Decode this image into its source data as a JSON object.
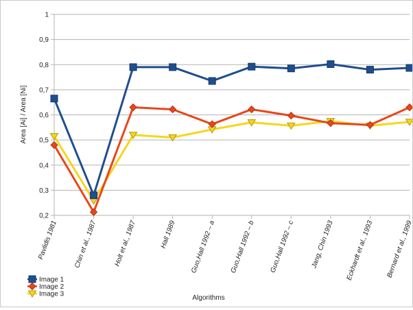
{
  "chart_data": {
    "type": "line",
    "title": "",
    "xlabel": "Algorithms",
    "ylabel": "Area [Ai] / Area [Ni]",
    "ylim": [
      0.2,
      1
    ],
    "ytick_labels": [
      "0,2",
      "0,3",
      "0,4",
      "0,5",
      "0,6",
      "0,7",
      "0,8",
      "0,9",
      "1"
    ],
    "grid": "horizontal",
    "legend_position": "bottom-left",
    "categories": [
      "Pavlidis 1981",
      "Chin et al., 1987",
      "Holt et al., 1987",
      "Hall 1989",
      "Guo,Hall 1992 – a",
      "Guo,Hall 1992 – b",
      "Guo,Hall 1992 – c",
      "Jang, Chin 1993",
      "Eckhardt et al., 1993",
      "Bernard et al., 1999"
    ],
    "series": [
      {
        "name": "Image 1",
        "color": "#1f4e8c",
        "marker": "square",
        "values": [
          0.665,
          0.28,
          0.79,
          0.79,
          0.735,
          0.792,
          0.785,
          0.802,
          0.78,
          0.787
        ]
      },
      {
        "name": "Image 2",
        "color": "#e8461c",
        "marker": "diamond",
        "values": [
          0.48,
          0.213,
          0.63,
          0.622,
          0.563,
          0.622,
          0.597,
          0.567,
          0.56,
          0.63
        ]
      },
      {
        "name": "Image 3",
        "color": "#f5d61c",
        "marker": "triangle-down",
        "values": [
          0.515,
          0.258,
          0.52,
          0.51,
          0.542,
          0.57,
          0.557,
          0.575,
          0.557,
          0.572
        ]
      }
    ]
  }
}
